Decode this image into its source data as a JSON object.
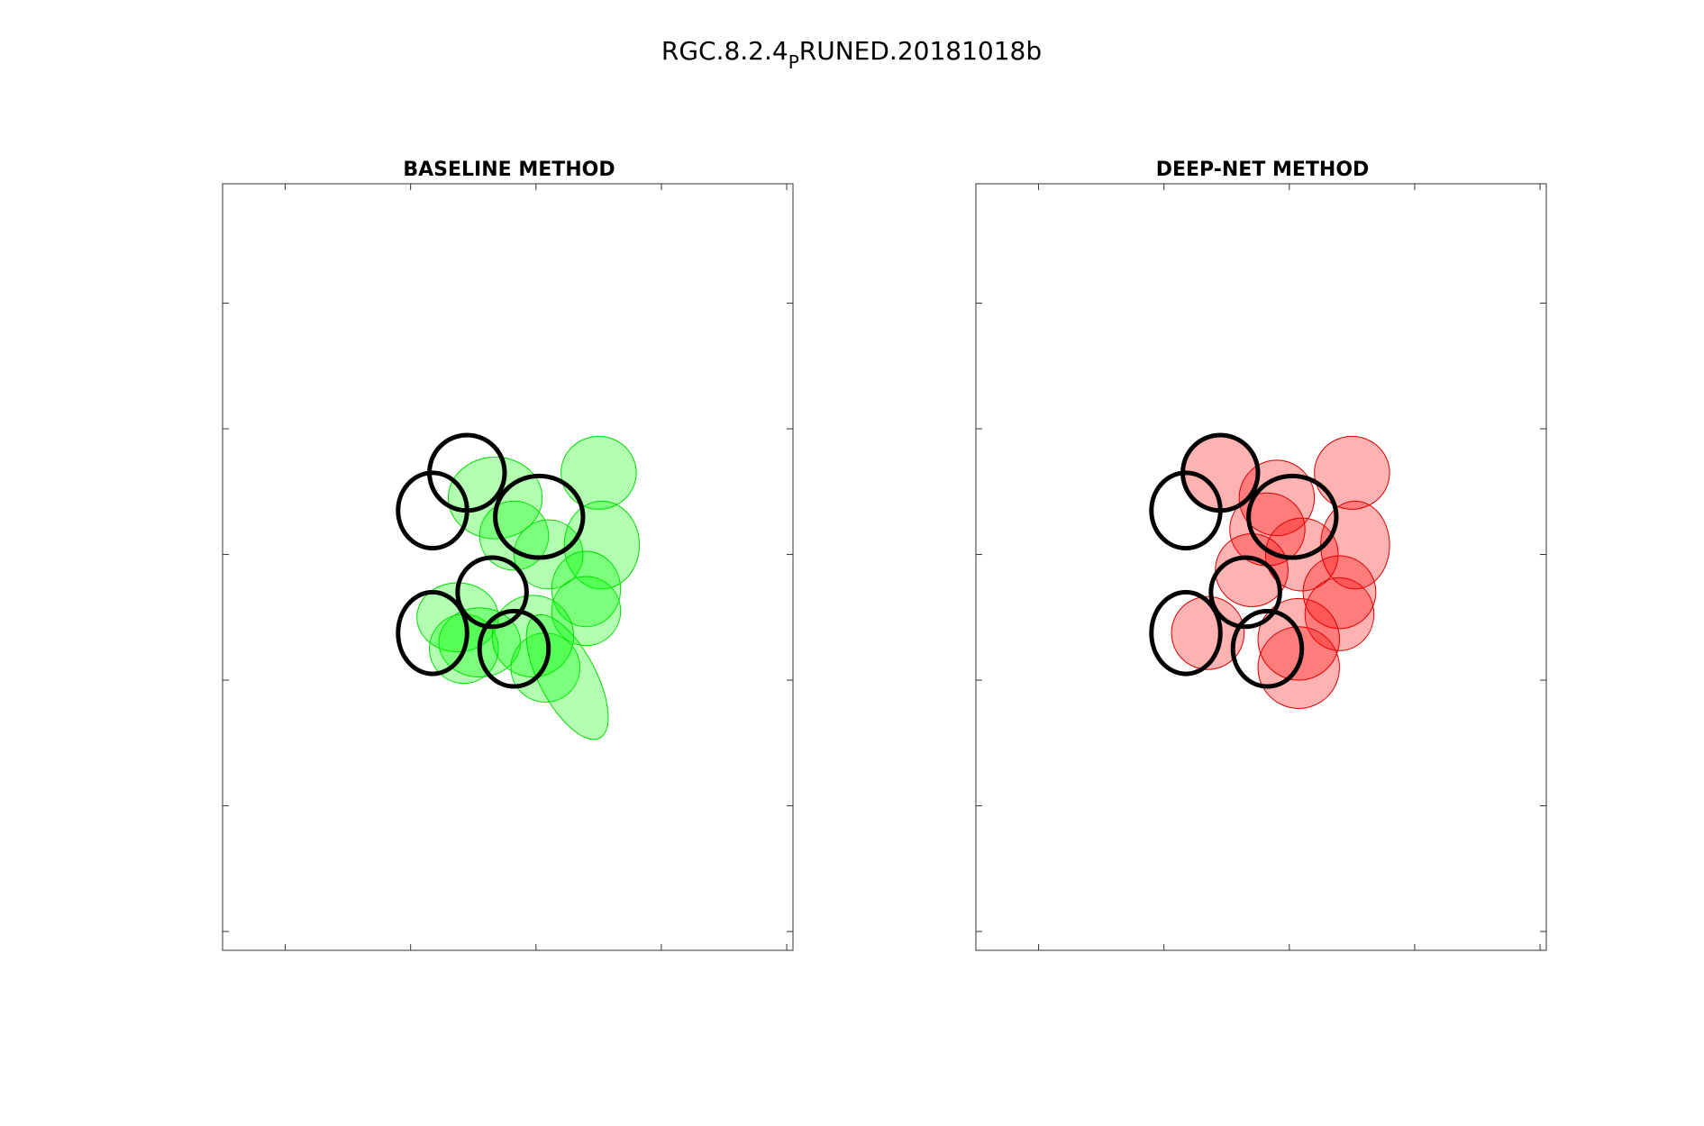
{
  "figure": {
    "title_main": "RGC.8.2.4",
    "title_sub": "P",
    "title_rest": "RUNED.20181018b"
  },
  "colors": {
    "baseline_fill": "#00ff00",
    "baseline_edge": "#00dd00",
    "deepnet_fill": "#ff0000",
    "deepnet_edge": "#dd0000",
    "reference_outline": "#000000",
    "axes": "#333333"
  },
  "chart_data": [
    {
      "type": "scatter",
      "title": "BASELINE METHOD",
      "xlabel": "",
      "ylabel": "",
      "xlim": [
        0,
        91
      ],
      "ylim": [
        0,
        122
      ],
      "xticks": [
        10,
        30,
        50,
        70,
        90
      ],
      "yticks": [
        3,
        23,
        43,
        63,
        83,
        103
      ],
      "tick_labels_visible": false,
      "grid": false,
      "fill_color": "#00ff00",
      "fill_opacity": 0.3,
      "fitted_ellipses": [
        {
          "cx": 43.5,
          "cy": 72.0,
          "rx": 7.5,
          "ry": 6.5,
          "angle": 0
        },
        {
          "cx": 60.0,
          "cy": 76.0,
          "rx": 6.0,
          "ry": 5.8,
          "angle": 0
        },
        {
          "cx": 60.5,
          "cy": 64.5,
          "rx": 6.0,
          "ry": 7.0,
          "angle": 0
        },
        {
          "cx": 46.5,
          "cy": 66.0,
          "rx": 5.5,
          "ry": 5.5,
          "angle": 0
        },
        {
          "cx": 52.0,
          "cy": 63.0,
          "rx": 5.5,
          "ry": 5.5,
          "angle": 0
        },
        {
          "cx": 58.0,
          "cy": 57.5,
          "rx": 5.5,
          "ry": 6.0,
          "angle": 0
        },
        {
          "cx": 58.0,
          "cy": 54.0,
          "rx": 5.5,
          "ry": 5.5,
          "angle": 0
        },
        {
          "cx": 37.5,
          "cy": 53.0,
          "rx": 6.5,
          "ry": 5.5,
          "angle": 0
        },
        {
          "cx": 41.0,
          "cy": 49.0,
          "rx": 6.5,
          "ry": 5.5,
          "angle": 0
        },
        {
          "cx": 38.5,
          "cy": 48.0,
          "rx": 5.5,
          "ry": 5.5,
          "angle": 0
        },
        {
          "cx": 49.5,
          "cy": 50.0,
          "rx": 6.5,
          "ry": 6.5,
          "angle": 0
        },
        {
          "cx": 51.5,
          "cy": 45.0,
          "rx": 5.5,
          "ry": 5.5,
          "angle": 0
        },
        {
          "cx": 55.0,
          "cy": 43.5,
          "rx": 4.5,
          "ry": 11.0,
          "angle": -28
        }
      ],
      "reference_ellipses": [
        {
          "cx": 33.5,
          "cy": 70.0,
          "rx": 5.5,
          "ry": 6.0,
          "angle": 0
        },
        {
          "cx": 39.0,
          "cy": 76.0,
          "rx": 6.0,
          "ry": 6.0,
          "angle": 0
        },
        {
          "cx": 50.5,
          "cy": 69.0,
          "rx": 7.0,
          "ry": 6.5,
          "angle": 0
        },
        {
          "cx": 43.0,
          "cy": 57.0,
          "rx": 5.5,
          "ry": 5.5,
          "angle": 0
        },
        {
          "cx": 33.5,
          "cy": 50.5,
          "rx": 5.5,
          "ry": 6.5,
          "angle": 0
        },
        {
          "cx": 46.5,
          "cy": 48.0,
          "rx": 5.5,
          "ry": 6.0,
          "angle": 0
        }
      ]
    },
    {
      "type": "scatter",
      "title": "DEEP-NET METHOD",
      "xlabel": "",
      "ylabel": "",
      "xlim": [
        0,
        91
      ],
      "ylim": [
        0,
        122
      ],
      "xticks": [
        10,
        30,
        50,
        70,
        90
      ],
      "yticks": [
        3,
        23,
        43,
        63,
        83,
        103
      ],
      "tick_labels_visible": false,
      "grid": false,
      "fill_color": "#ff0000",
      "fill_opacity": 0.3,
      "fitted_ellipses": [
        {
          "cx": 39.0,
          "cy": 76.0,
          "rx": 5.8,
          "ry": 5.8,
          "angle": 0
        },
        {
          "cx": 48.0,
          "cy": 72.0,
          "rx": 6.0,
          "ry": 6.0,
          "angle": 0
        },
        {
          "cx": 60.0,
          "cy": 76.0,
          "rx": 6.0,
          "ry": 5.8,
          "angle": 0
        },
        {
          "cx": 46.5,
          "cy": 67.0,
          "rx": 6.0,
          "ry": 5.8,
          "angle": 0
        },
        {
          "cx": 52.0,
          "cy": 63.0,
          "rx": 5.8,
          "ry": 5.8,
          "angle": 0
        },
        {
          "cx": 60.5,
          "cy": 64.5,
          "rx": 5.5,
          "ry": 7.0,
          "angle": 0
        },
        {
          "cx": 58.0,
          "cy": 57.0,
          "rx": 5.8,
          "ry": 5.8,
          "angle": 0
        },
        {
          "cx": 58.0,
          "cy": 53.5,
          "rx": 5.5,
          "ry": 5.8,
          "angle": 0
        },
        {
          "cx": 44.0,
          "cy": 60.5,
          "rx": 5.8,
          "ry": 5.8,
          "angle": 0
        },
        {
          "cx": 37.0,
          "cy": 50.5,
          "rx": 5.8,
          "ry": 5.8,
          "angle": 0
        },
        {
          "cx": 51.5,
          "cy": 49.5,
          "rx": 6.5,
          "ry": 6.5,
          "angle": 0
        },
        {
          "cx": 51.5,
          "cy": 45.0,
          "rx": 6.5,
          "ry": 6.5,
          "angle": 0
        }
      ],
      "reference_ellipses": [
        {
          "cx": 33.5,
          "cy": 70.0,
          "rx": 5.5,
          "ry": 6.0,
          "angle": 0
        },
        {
          "cx": 39.0,
          "cy": 76.0,
          "rx": 6.0,
          "ry": 6.0,
          "angle": 0
        },
        {
          "cx": 50.5,
          "cy": 69.0,
          "rx": 7.0,
          "ry": 6.5,
          "angle": 0
        },
        {
          "cx": 43.0,
          "cy": 57.0,
          "rx": 5.5,
          "ry": 5.5,
          "angle": 0
        },
        {
          "cx": 33.5,
          "cy": 50.5,
          "rx": 5.5,
          "ry": 6.5,
          "angle": 0
        },
        {
          "cx": 46.5,
          "cy": 48.0,
          "rx": 5.5,
          "ry": 6.0,
          "angle": 0
        }
      ]
    }
  ]
}
